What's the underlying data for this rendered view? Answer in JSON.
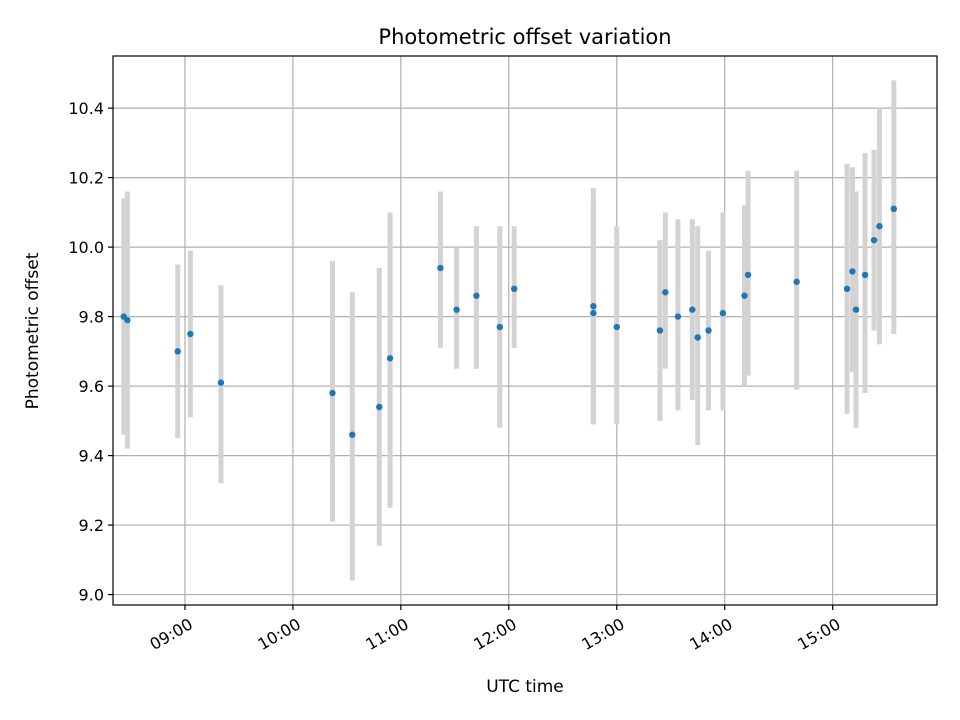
{
  "chart_data": {
    "type": "scatter",
    "title": "Photometric offset variation",
    "xlabel": "UTC time",
    "ylabel": "Photometric offset",
    "x_format": "HH:MM",
    "xlim": [
      "08:20",
      "15:58"
    ],
    "ylim": [
      8.97,
      10.55
    ],
    "x_ticks": [
      "09:00",
      "10:00",
      "11:00",
      "12:00",
      "13:00",
      "14:00",
      "15:00"
    ],
    "y_ticks": [
      9.0,
      9.2,
      9.4,
      9.6,
      9.8,
      10.0,
      10.2,
      10.4
    ],
    "y_tick_labels": [
      "9.0",
      "9.2",
      "9.4",
      "9.6",
      "9.8",
      "10.0",
      "10.2",
      "10.4"
    ],
    "grid": true,
    "colors": {
      "marker": "#1f77b4",
      "errorbar": "#d3d3d3",
      "grid": "#b0b0b0"
    },
    "series": [
      {
        "points": [
          {
            "x": "08:26",
            "y": 9.8,
            "ylo": 9.46,
            "yhi": 10.14
          },
          {
            "x": "08:28",
            "y": 9.79,
            "ylo": 9.42,
            "yhi": 10.16
          },
          {
            "x": "08:56",
            "y": 9.7,
            "ylo": 9.45,
            "yhi": 9.95
          },
          {
            "x": "09:03",
            "y": 9.75,
            "ylo": 9.51,
            "yhi": 9.99
          },
          {
            "x": "09:20",
            "y": 9.61,
            "ylo": 9.32,
            "yhi": 9.89
          },
          {
            "x": "10:22",
            "y": 9.58,
            "ylo": 9.21,
            "yhi": 9.96
          },
          {
            "x": "10:33",
            "y": 9.46,
            "ylo": 9.04,
            "yhi": 9.87
          },
          {
            "x": "10:48",
            "y": 9.54,
            "ylo": 9.14,
            "yhi": 9.94
          },
          {
            "x": "10:54",
            "y": 9.68,
            "ylo": 9.25,
            "yhi": 10.1
          },
          {
            "x": "11:22",
            "y": 9.94,
            "ylo": 9.71,
            "yhi": 10.16
          },
          {
            "x": "11:31",
            "y": 9.82,
            "ylo": 9.65,
            "yhi": 10.0
          },
          {
            "x": "11:42",
            "y": 9.86,
            "ylo": 9.65,
            "yhi": 10.06
          },
          {
            "x": "11:55",
            "y": 9.77,
            "ylo": 9.48,
            "yhi": 10.06
          },
          {
            "x": "12:03",
            "y": 9.88,
            "ylo": 9.71,
            "yhi": 10.06
          },
          {
            "x": "12:47",
            "y": 9.83,
            "ylo": 9.49,
            "yhi": 10.17
          },
          {
            "x": "12:47",
            "y": 9.81,
            "ylo": 9.49,
            "yhi": 10.13
          },
          {
            "x": "13:00",
            "y": 9.77,
            "ylo": 9.49,
            "yhi": 10.06
          },
          {
            "x": "13:24",
            "y": 9.76,
            "ylo": 9.5,
            "yhi": 10.02
          },
          {
            "x": "13:27",
            "y": 9.87,
            "ylo": 9.65,
            "yhi": 10.1
          },
          {
            "x": "13:34",
            "y": 9.8,
            "ylo": 9.53,
            "yhi": 10.08
          },
          {
            "x": "13:42",
            "y": 9.82,
            "ylo": 9.56,
            "yhi": 10.08
          },
          {
            "x": "13:45",
            "y": 9.74,
            "ylo": 9.43,
            "yhi": 10.06
          },
          {
            "x": "13:51",
            "y": 9.76,
            "ylo": 9.53,
            "yhi": 9.99
          },
          {
            "x": "13:59",
            "y": 9.81,
            "ylo": 9.53,
            "yhi": 10.1
          },
          {
            "x": "14:11",
            "y": 9.86,
            "ylo": 9.6,
            "yhi": 10.12
          },
          {
            "x": "14:13",
            "y": 9.92,
            "ylo": 9.63,
            "yhi": 10.22
          },
          {
            "x": "14:40",
            "y": 9.9,
            "ylo": 9.59,
            "yhi": 10.22
          },
          {
            "x": "15:08",
            "y": 9.88,
            "ylo": 9.52,
            "yhi": 10.24
          },
          {
            "x": "15:11",
            "y": 9.93,
            "ylo": 9.64,
            "yhi": 10.23
          },
          {
            "x": "15:13",
            "y": 9.82,
            "ylo": 9.48,
            "yhi": 10.16
          },
          {
            "x": "15:18",
            "y": 9.92,
            "ylo": 9.58,
            "yhi": 10.27
          },
          {
            "x": "15:23",
            "y": 10.02,
            "ylo": 9.76,
            "yhi": 10.28
          },
          {
            "x": "15:26",
            "y": 10.06,
            "ylo": 9.72,
            "yhi": 10.4
          },
          {
            "x": "15:34",
            "y": 10.11,
            "ylo": 9.75,
            "yhi": 10.48
          }
        ]
      }
    ]
  }
}
